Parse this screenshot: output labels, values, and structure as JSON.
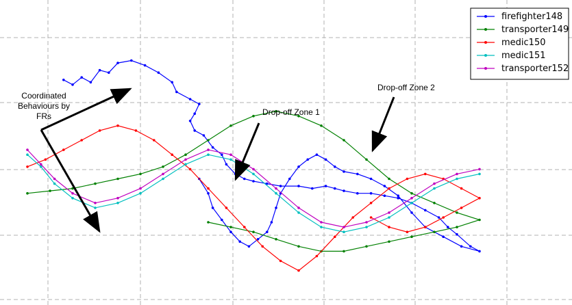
{
  "chart_data": {
    "type": "line",
    "title": "",
    "xlabel": "",
    "ylabel": "",
    "grid": true,
    "grid_style": "dashed",
    "axis_ticks_labeled": false,
    "legend_position": "top-right",
    "series": [
      {
        "name": "firefighter148",
        "color": "#0000ff",
        "points": [
          [
            0.08,
            0.91
          ],
          [
            0.1,
            0.89
          ],
          [
            0.12,
            0.92
          ],
          [
            0.14,
            0.9
          ],
          [
            0.16,
            0.95
          ],
          [
            0.18,
            0.94
          ],
          [
            0.2,
            0.98
          ],
          [
            0.23,
            0.99
          ],
          [
            0.26,
            0.97
          ],
          [
            0.29,
            0.94
          ],
          [
            0.32,
            0.9
          ],
          [
            0.33,
            0.86
          ],
          [
            0.36,
            0.83
          ],
          [
            0.38,
            0.81
          ],
          [
            0.37,
            0.77
          ],
          [
            0.36,
            0.74
          ],
          [
            0.37,
            0.7
          ],
          [
            0.39,
            0.68
          ],
          [
            0.41,
            0.63
          ],
          [
            0.43,
            0.6
          ],
          [
            0.44,
            0.56
          ],
          [
            0.46,
            0.52
          ],
          [
            0.48,
            0.5
          ],
          [
            0.5,
            0.49
          ],
          [
            0.53,
            0.48
          ],
          [
            0.56,
            0.47
          ],
          [
            0.6,
            0.47
          ],
          [
            0.63,
            0.46
          ],
          [
            0.66,
            0.47
          ],
          [
            0.68,
            0.46
          ],
          [
            0.7,
            0.45
          ],
          [
            0.73,
            0.44
          ],
          [
            0.76,
            0.44
          ],
          [
            0.79,
            0.43
          ],
          [
            0.82,
            0.42
          ],
          [
            0.85,
            0.4
          ],
          [
            0.88,
            0.37
          ],
          [
            0.91,
            0.34
          ],
          [
            0.93,
            0.3
          ],
          [
            0.95,
            0.27
          ],
          [
            0.98,
            0.22
          ],
          [
            1.0,
            0.2
          ],
          [
            0.96,
            0.22
          ],
          [
            0.92,
            0.26
          ],
          [
            0.88,
            0.3
          ],
          [
            0.85,
            0.36
          ],
          [
            0.82,
            0.43
          ],
          [
            0.79,
            0.47
          ],
          [
            0.76,
            0.5
          ],
          [
            0.73,
            0.52
          ],
          [
            0.7,
            0.53
          ],
          [
            0.68,
            0.55
          ],
          [
            0.66,
            0.58
          ],
          [
            0.64,
            0.6
          ],
          [
            0.62,
            0.58
          ],
          [
            0.6,
            0.55
          ],
          [
            0.58,
            0.5
          ],
          [
            0.56,
            0.44
          ],
          [
            0.55,
            0.38
          ],
          [
            0.54,
            0.32
          ],
          [
            0.53,
            0.28
          ],
          [
            0.51,
            0.25
          ],
          [
            0.49,
            0.22
          ],
          [
            0.47,
            0.24
          ],
          [
            0.45,
            0.28
          ],
          [
            0.43,
            0.33
          ],
          [
            0.41,
            0.38
          ],
          [
            0.4,
            0.44
          ],
          [
            0.38,
            0.5
          ]
        ]
      },
      {
        "name": "transporter149",
        "color": "#008000",
        "points": [
          [
            0.0,
            0.44
          ],
          [
            0.05,
            0.45
          ],
          [
            0.1,
            0.46
          ],
          [
            0.15,
            0.48
          ],
          [
            0.2,
            0.5
          ],
          [
            0.25,
            0.52
          ],
          [
            0.3,
            0.55
          ],
          [
            0.35,
            0.6
          ],
          [
            0.4,
            0.66
          ],
          [
            0.45,
            0.72
          ],
          [
            0.5,
            0.76
          ],
          [
            0.55,
            0.78
          ],
          [
            0.6,
            0.76
          ],
          [
            0.65,
            0.72
          ],
          [
            0.7,
            0.66
          ],
          [
            0.75,
            0.58
          ],
          [
            0.8,
            0.5
          ],
          [
            0.85,
            0.44
          ],
          [
            0.9,
            0.4
          ],
          [
            0.95,
            0.36
          ],
          [
            1.0,
            0.33
          ],
          [
            0.95,
            0.3
          ],
          [
            0.9,
            0.28
          ],
          [
            0.85,
            0.26
          ],
          [
            0.8,
            0.24
          ],
          [
            0.75,
            0.22
          ],
          [
            0.7,
            0.2
          ],
          [
            0.65,
            0.2
          ],
          [
            0.6,
            0.22
          ],
          [
            0.55,
            0.25
          ],
          [
            0.5,
            0.28
          ],
          [
            0.45,
            0.3
          ],
          [
            0.4,
            0.32
          ]
        ]
      },
      {
        "name": "medic150",
        "color": "#ff0000",
        "points": [
          [
            0.0,
            0.55
          ],
          [
            0.04,
            0.58
          ],
          [
            0.08,
            0.62
          ],
          [
            0.12,
            0.66
          ],
          [
            0.16,
            0.7
          ],
          [
            0.2,
            0.72
          ],
          [
            0.24,
            0.7
          ],
          [
            0.28,
            0.66
          ],
          [
            0.32,
            0.6
          ],
          [
            0.36,
            0.54
          ],
          [
            0.4,
            0.46
          ],
          [
            0.44,
            0.38
          ],
          [
            0.48,
            0.3
          ],
          [
            0.52,
            0.22
          ],
          [
            0.56,
            0.16
          ],
          [
            0.6,
            0.12
          ],
          [
            0.64,
            0.18
          ],
          [
            0.68,
            0.26
          ],
          [
            0.72,
            0.34
          ],
          [
            0.76,
            0.4
          ],
          [
            0.8,
            0.46
          ],
          [
            0.84,
            0.5
          ],
          [
            0.88,
            0.52
          ],
          [
            0.92,
            0.5
          ],
          [
            0.96,
            0.46
          ],
          [
            1.0,
            0.42
          ],
          [
            0.96,
            0.38
          ],
          [
            0.92,
            0.34
          ],
          [
            0.88,
            0.3
          ],
          [
            0.84,
            0.28
          ],
          [
            0.8,
            0.3
          ],
          [
            0.76,
            0.34
          ]
        ]
      },
      {
        "name": "medic151",
        "color": "#00bfbf",
        "points": [
          [
            0.0,
            0.6
          ],
          [
            0.03,
            0.55
          ],
          [
            0.06,
            0.48
          ],
          [
            0.1,
            0.42
          ],
          [
            0.15,
            0.38
          ],
          [
            0.2,
            0.4
          ],
          [
            0.25,
            0.44
          ],
          [
            0.3,
            0.5
          ],
          [
            0.35,
            0.56
          ],
          [
            0.4,
            0.6
          ],
          [
            0.45,
            0.58
          ],
          [
            0.5,
            0.52
          ],
          [
            0.55,
            0.44
          ],
          [
            0.6,
            0.36
          ],
          [
            0.65,
            0.3
          ],
          [
            0.7,
            0.28
          ],
          [
            0.75,
            0.3
          ],
          [
            0.8,
            0.34
          ],
          [
            0.85,
            0.4
          ],
          [
            0.9,
            0.46
          ],
          [
            0.95,
            0.5
          ],
          [
            1.0,
            0.52
          ]
        ]
      },
      {
        "name": "transporter152",
        "color": "#bf00bf",
        "points": [
          [
            0.0,
            0.62
          ],
          [
            0.03,
            0.56
          ],
          [
            0.06,
            0.5
          ],
          [
            0.1,
            0.44
          ],
          [
            0.15,
            0.4
          ],
          [
            0.2,
            0.42
          ],
          [
            0.25,
            0.46
          ],
          [
            0.3,
            0.52
          ],
          [
            0.35,
            0.58
          ],
          [
            0.4,
            0.62
          ],
          [
            0.45,
            0.6
          ],
          [
            0.5,
            0.54
          ],
          [
            0.55,
            0.46
          ],
          [
            0.6,
            0.38
          ],
          [
            0.65,
            0.32
          ],
          [
            0.7,
            0.3
          ],
          [
            0.75,
            0.32
          ],
          [
            0.8,
            0.36
          ],
          [
            0.85,
            0.42
          ],
          [
            0.9,
            0.48
          ],
          [
            0.95,
            0.52
          ],
          [
            1.0,
            0.54
          ]
        ]
      }
    ],
    "annotations": [
      {
        "text_lines": [
          "Coordinated",
          "Behaviours by",
          "FRs"
        ]
      },
      {
        "text_lines": [
          "Drop-off Zone 1"
        ]
      },
      {
        "text_lines": [
          "Drop-off Zone 2"
        ]
      }
    ]
  }
}
